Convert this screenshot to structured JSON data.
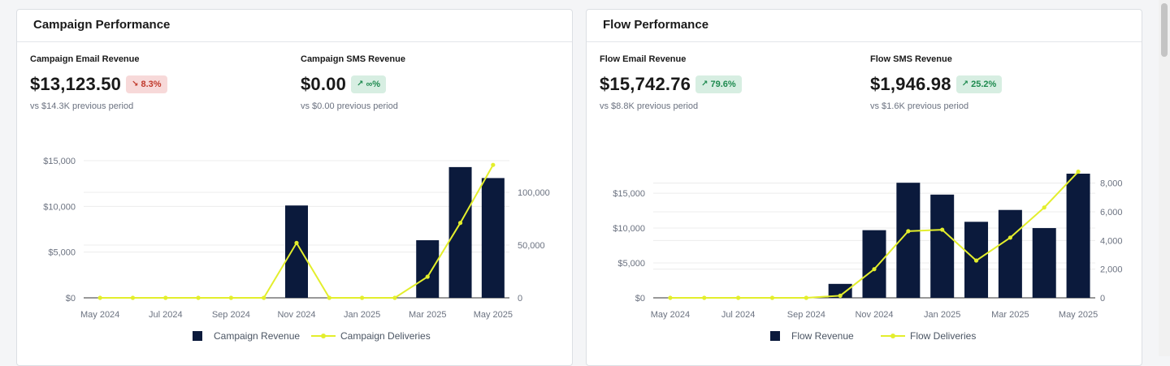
{
  "campaign": {
    "title": "Campaign Performance",
    "email": {
      "label": "Campaign Email Revenue",
      "value": "$13,123.50",
      "change": "8.3%",
      "trend": "down",
      "compare": "vs $14.3K previous period"
    },
    "sms": {
      "label": "Campaign SMS Revenue",
      "value": "$0.00",
      "change": "∞%",
      "trend": "up",
      "compare": "vs $0.00 previous period"
    }
  },
  "flow": {
    "title": "Flow Performance",
    "email": {
      "label": "Flow Email Revenue",
      "value": "$15,742.76",
      "change": "79.6%",
      "trend": "up",
      "compare": "vs $8.8K previous period"
    },
    "sms": {
      "label": "Flow SMS Revenue",
      "value": "$1,946.98",
      "change": "25.2%",
      "trend": "up",
      "compare": "vs $1.6K previous period"
    }
  },
  "colors": {
    "bar": "#0b1a3c",
    "line": "#e3ee2c",
    "grid": "#ececec",
    "axis_text": "#6b7280"
  },
  "chart_data": [
    {
      "type": "bar",
      "months": [
        "May 2024",
        "Jun 2024",
        "Jul 2024",
        "Aug 2024",
        "Sep 2024",
        "Oct 2024",
        "Nov 2024",
        "Dec 2024",
        "Jan 2025",
        "Feb 2025",
        "Mar 2025",
        "Apr 2025",
        "May 2025"
      ],
      "x_tick_labels": [
        "May 2024",
        "Jul 2024",
        "Sep 2024",
        "Nov 2024",
        "Jan 2025",
        "Mar 2025",
        "May 2025"
      ],
      "series": [
        {
          "name": "Campaign Revenue",
          "type": "bar",
          "axis": "left",
          "values": [
            0,
            0,
            0,
            0,
            0,
            0,
            10100,
            0,
            0,
            0,
            6300,
            14300,
            13100
          ]
        },
        {
          "name": "Campaign Deliveries",
          "type": "line",
          "axis": "right",
          "values": [
            0,
            0,
            0,
            0,
            0,
            0,
            52000,
            0,
            0,
            0,
            20000,
            71000,
            126000
          ]
        }
      ],
      "y_left": {
        "min": 0,
        "max": 15000,
        "ticks": [
          0,
          5000,
          10000,
          15000
        ],
        "tick_labels": [
          "$0",
          "$5,000",
          "$10,000",
          "$15,000"
        ]
      },
      "y_right": {
        "min": 0,
        "max": 130000,
        "ticks": [
          0,
          50000,
          100000
        ],
        "tick_labels": [
          "0",
          "50,000",
          "100,000"
        ]
      },
      "grid": true,
      "legend_position": "bottom"
    },
    {
      "type": "bar",
      "months": [
        "May 2024",
        "Jun 2024",
        "Jul 2024",
        "Aug 2024",
        "Sep 2024",
        "Oct 2024",
        "Nov 2024",
        "Dec 2024",
        "Jan 2025",
        "Feb 2025",
        "Mar 2025",
        "Apr 2025",
        "May 2025"
      ],
      "x_tick_labels": [
        "May 2024",
        "Jul 2024",
        "Sep 2024",
        "Nov 2024",
        "Jan 2025",
        "Mar 2025",
        "May 2025"
      ],
      "series": [
        {
          "name": "Flow Revenue",
          "type": "bar",
          "axis": "left",
          "values": [
            0,
            0,
            0,
            0,
            0,
            2000,
            9700,
            16500,
            14800,
            10900,
            12600,
            10000,
            17800
          ]
        },
        {
          "name": "Flow Deliveries",
          "type": "line",
          "axis": "right",
          "values": [
            0,
            0,
            0,
            0,
            0,
            150,
            2000,
            4650,
            4750,
            2600,
            4200,
            6300,
            8800
          ]
        }
      ],
      "y_left": {
        "min": 0,
        "max": 18500,
        "ticks": [
          0,
          5000,
          10000,
          15000
        ],
        "tick_labels": [
          "$0",
          "$5,000",
          "$10,000",
          "$15,000"
        ]
      },
      "y_right": {
        "min": 0,
        "max": 9000,
        "ticks": [
          0,
          2000,
          4000,
          6000,
          8000
        ],
        "tick_labels": [
          "0",
          "2,000",
          "4,000",
          "6,000",
          "8,000"
        ]
      },
      "grid": true,
      "legend_position": "bottom"
    }
  ]
}
